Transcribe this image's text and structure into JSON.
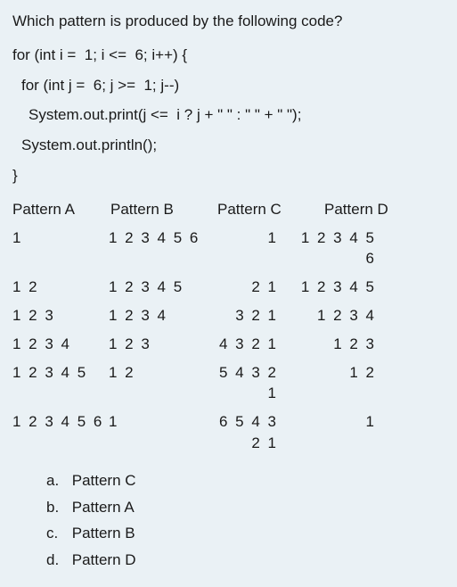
{
  "question": "Which pattern is produced by the following code?",
  "code": {
    "l1": "for (int i =  1; i <=  6; i++) {",
    "l2": "for (int j =  6; j >=  1; j--)",
    "l3": "System.out.print(j <=  i ? j + \" \" : \" \" + \" \");",
    "l4": "System.out.println();",
    "l5": "}"
  },
  "headers": {
    "a": "Pattern A",
    "b": "Pattern B",
    "c": "Pattern C",
    "d": "Pattern D"
  },
  "patterns": {
    "a": [
      "1",
      "1 2",
      "1 2 3",
      "1 2 3 4",
      "1 2 3 4 5",
      "1 2 3 4 5 6"
    ],
    "b": [
      "1 2 3 4 5 6",
      "1 2 3 4 5",
      "1 2 3 4",
      "1 2 3",
      "1 2",
      "1"
    ],
    "c": [
      "1",
      "2 1",
      "3 2 1",
      "4 3 2 1",
      "5 4 3 2 1",
      "6 5 4 3 2 1"
    ],
    "d": [
      "1 2 3 4 5 6",
      "1 2 3 4 5",
      "1 2 3 4",
      "1 2 3",
      "1 2",
      "1"
    ]
  },
  "options": {
    "a": {
      "letter": "a.",
      "text": "Pattern C"
    },
    "b": {
      "letter": "b.",
      "text": "Pattern A"
    },
    "c": {
      "letter": "c.",
      "text": "Pattern B"
    },
    "d": {
      "letter": "d.",
      "text": "Pattern D"
    }
  },
  "colors": {
    "background": "#eaf1f5",
    "text": "#1a1a1a"
  }
}
